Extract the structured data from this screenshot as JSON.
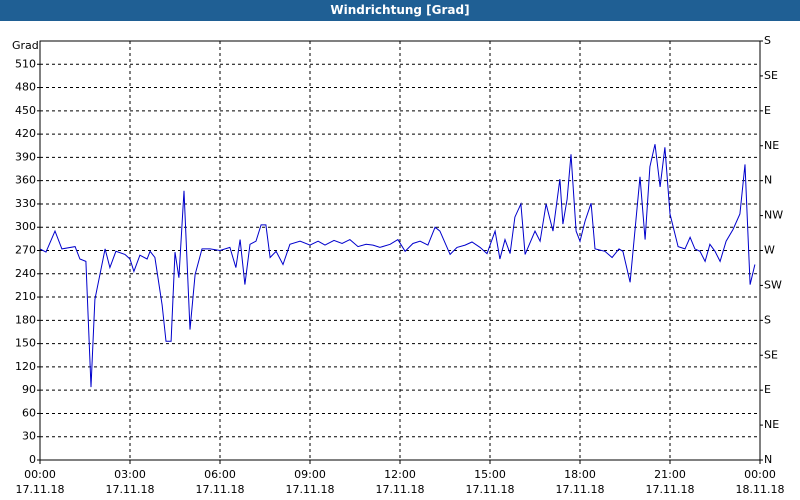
{
  "chart_data": {
    "type": "line",
    "title": "Windrichtung [Grad]",
    "y_label": "Grad",
    "xlim": [
      0,
      24
    ],
    "ylim": [
      0,
      540
    ],
    "y2lim": [
      0,
      540
    ],
    "grid": true,
    "xticks": [
      {
        "value": 0,
        "label": "00:00"
      },
      {
        "value": 3,
        "label": "03:00"
      },
      {
        "value": 6,
        "label": "06:00"
      },
      {
        "value": 9,
        "label": "09:00"
      },
      {
        "value": 12,
        "label": "12:00"
      },
      {
        "value": 15,
        "label": "15:00"
      },
      {
        "value": 18,
        "label": "18:00"
      },
      {
        "value": 21,
        "label": "21:00"
      },
      {
        "value": 24,
        "label": "00:00"
      }
    ],
    "xtick_dates": [
      "17.11.18",
      "17.11.18",
      "17.11.18",
      "17.11.18",
      "17.11.18",
      "17.11.18",
      "17.11.18",
      "17.11.18",
      "18.11.18"
    ],
    "yticks": [
      0,
      30,
      60,
      90,
      120,
      150,
      180,
      210,
      240,
      270,
      300,
      330,
      360,
      390,
      420,
      450,
      480,
      510
    ],
    "y2ticks": [
      {
        "value": 0,
        "label": "N"
      },
      {
        "value": 45,
        "label": "NE"
      },
      {
        "value": 90,
        "label": "E"
      },
      {
        "value": 135,
        "label": "SE"
      },
      {
        "value": 180,
        "label": "S"
      },
      {
        "value": 225,
        "label": "SW"
      },
      {
        "value": 270,
        "label": "W"
      },
      {
        "value": 315,
        "label": "NW"
      },
      {
        "value": 360,
        "label": "N"
      },
      {
        "value": 405,
        "label": "NE"
      },
      {
        "value": 450,
        "label": "E"
      },
      {
        "value": 495,
        "label": "SE"
      },
      {
        "value": 540,
        "label": "S"
      }
    ],
    "x": [
      0,
      0.2,
      0.5,
      0.73,
      1.17,
      1.33,
      1.53,
      1.7,
      1.83,
      2.17,
      2.33,
      2.53,
      2.83,
      3,
      3.13,
      3.33,
      3.57,
      3.67,
      3.83,
      4.07,
      4.2,
      4.37,
      4.5,
      4.63,
      4.8,
      5,
      5.17,
      5.4,
      5.67,
      6,
      6.33,
      6.53,
      6.67,
      6.83,
      7,
      7.2,
      7.37,
      7.53,
      7.67,
      7.87,
      8.1,
      8.33,
      8.67,
      9,
      9.27,
      9.5,
      9.8,
      10.07,
      10.33,
      10.6,
      10.87,
      11.1,
      11.33,
      11.67,
      11.93,
      12.17,
      12.43,
      12.67,
      12.93,
      13.17,
      13.33,
      13.67,
      13.9,
      14.17,
      14.4,
      14.67,
      14.9,
      15.17,
      15.33,
      15.5,
      15.67,
      15.83,
      16.03,
      16.17,
      16.5,
      16.67,
      16.87,
      17.1,
      17.33,
      17.43,
      17.57,
      17.7,
      17.87,
      18,
      18.17,
      18.37,
      18.5,
      18.83,
      19.07,
      19.3,
      19.43,
      19.67,
      20,
      20.17,
      20.33,
      20.5,
      20.67,
      20.83,
      21,
      21.27,
      21.5,
      21.67,
      21.83,
      22,
      22.17,
      22.33,
      22.5,
      22.67,
      22.87,
      23.1,
      23.33,
      23.5,
      23.67,
      23.83
    ],
    "series": [
      {
        "color": "#0000cc",
        "values": [
          272,
          268,
          295,
          272,
          275,
          259,
          256,
          94,
          207,
          272,
          248,
          269,
          265,
          259,
          243,
          264,
          259,
          269,
          261,
          200,
          153,
          153,
          268,
          235,
          347,
          168,
          239,
          272,
          272,
          270,
          274,
          248,
          284,
          226,
          278,
          282,
          303,
          303,
          261,
          269,
          252,
          278,
          282,
          277,
          282,
          277,
          283,
          279,
          284,
          275,
          278,
          277,
          274,
          278,
          284,
          269,
          279,
          282,
          277,
          300,
          295,
          265,
          274,
          277,
          281,
          274,
          266,
          295,
          259,
          284,
          266,
          313,
          330,
          265,
          295,
          282,
          330,
          295,
          362,
          304,
          336,
          394,
          295,
          282,
          308,
          331,
          272,
          269,
          261,
          272,
          269,
          229,
          365,
          284,
          378,
          407,
          352,
          403,
          317,
          275,
          272,
          287,
          272,
          269,
          256,
          278,
          269,
          256,
          282,
          297,
          317,
          381,
          226,
          252
        ]
      }
    ]
  }
}
